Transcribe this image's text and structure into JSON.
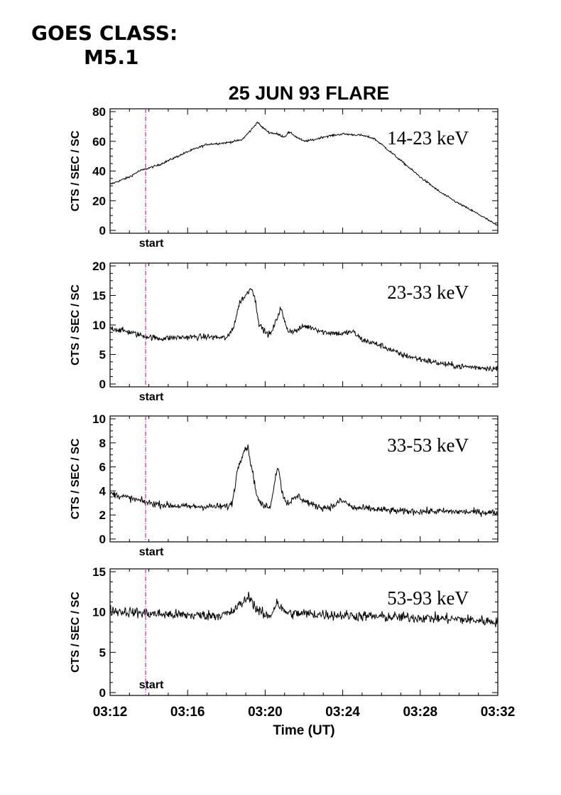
{
  "goes": {
    "line1": "GOES CLASS:",
    "line2": "M5.1"
  },
  "chart_data": {
    "type": "line",
    "title": "25 JUN 93 FLARE",
    "xlabel": "Time (UT)",
    "x_tick_labels": [
      "03:12",
      "03:16",
      "03:20",
      "03:24",
      "03:28",
      "03:32"
    ],
    "x_range_minutes": [
      0,
      20
    ],
    "x_origin": "03:12",
    "start_marker": {
      "label": "start",
      "time": "03:13:50",
      "color": "#cc22cc"
    },
    "grid": false,
    "panels": [
      {
        "band": "14-23 keV",
        "ylabel": "CTS / SEC / SC",
        "ylim": [
          0,
          80
        ],
        "yticks": [
          0,
          20,
          40,
          60,
          80
        ],
        "noise": 0.7,
        "series": [
          [
            0,
            31
          ],
          [
            1,
            36
          ],
          [
            1.5,
            40
          ],
          [
            2.5,
            44
          ],
          [
            3.5,
            50
          ],
          [
            4,
            53
          ],
          [
            5,
            58
          ],
          [
            6,
            59
          ],
          [
            6.8,
            61
          ],
          [
            7.3,
            68
          ],
          [
            7.6,
            73
          ],
          [
            7.8,
            70
          ],
          [
            8.2,
            66
          ],
          [
            8.6,
            65
          ],
          [
            9,
            63
          ],
          [
            9.2,
            66
          ],
          [
            9.4,
            65
          ],
          [
            9.6,
            63
          ],
          [
            10,
            60
          ],
          [
            10.5,
            61
          ],
          [
            11,
            63
          ],
          [
            12,
            65
          ],
          [
            13,
            64
          ],
          [
            13.6,
            62
          ],
          [
            14,
            58
          ],
          [
            15,
            47
          ],
          [
            16,
            36
          ],
          [
            17,
            26
          ],
          [
            18,
            18
          ],
          [
            19,
            11
          ],
          [
            19.5,
            7
          ],
          [
            20,
            3
          ]
        ]
      },
      {
        "band": "23-33 keV",
        "ylabel": "CTS / SEC / SC",
        "ylim": [
          0,
          20
        ],
        "yticks": [
          0,
          5,
          10,
          15,
          20
        ],
        "noise": 0.5,
        "series": [
          [
            0,
            9.5
          ],
          [
            1,
            8.8
          ],
          [
            1.5,
            8.3
          ],
          [
            2.5,
            7.7
          ],
          [
            3.5,
            7.9
          ],
          [
            5,
            8
          ],
          [
            6,
            7.8
          ],
          [
            6,
            7.8
          ],
          [
            6.1,
            8
          ],
          [
            6.4,
            10
          ],
          [
            6.7,
            14
          ],
          [
            7,
            15
          ],
          [
            7.3,
            16.5
          ],
          [
            7.5,
            14
          ],
          [
            7.7,
            10
          ],
          [
            8.1,
            8.5
          ],
          [
            8.3,
            8.5
          ],
          [
            8.6,
            11
          ],
          [
            8.8,
            13
          ],
          [
            9,
            10.5
          ],
          [
            9.2,
            9
          ],
          [
            9.6,
            9
          ],
          [
            10,
            9.8
          ],
          [
            10.5,
            9.5
          ],
          [
            11,
            8.8
          ],
          [
            12,
            8.5
          ],
          [
            12.5,
            8.9
          ],
          [
            13,
            7.5
          ],
          [
            13.5,
            7
          ],
          [
            14,
            6.5
          ],
          [
            15,
            5
          ],
          [
            16,
            4.2
          ],
          [
            17,
            3.5
          ],
          [
            18,
            3
          ],
          [
            19,
            2.8
          ],
          [
            20,
            2.6
          ]
        ]
      },
      {
        "band": "33-53 keV",
        "ylabel": "CTS / SEC / SC",
        "ylim": [
          0,
          10
        ],
        "yticks": [
          0,
          2,
          4,
          6,
          8,
          10
        ],
        "noise": 0.28,
        "series": [
          [
            0,
            3.8
          ],
          [
            1,
            3.4
          ],
          [
            2,
            3
          ],
          [
            3,
            2.8
          ],
          [
            4,
            2.7
          ],
          [
            5,
            2.7
          ],
          [
            6.1,
            2.7
          ],
          [
            6.3,
            3
          ],
          [
            6.6,
            6
          ],
          [
            6.9,
            7.4
          ],
          [
            7.1,
            7.7
          ],
          [
            7.3,
            6
          ],
          [
            7.6,
            3.4
          ],
          [
            7.9,
            2.7
          ],
          [
            8.3,
            2.8
          ],
          [
            8.55,
            5.5
          ],
          [
            8.7,
            6
          ],
          [
            8.85,
            4
          ],
          [
            9.1,
            3
          ],
          [
            9.4,
            3.2
          ],
          [
            9.7,
            3.6
          ],
          [
            10,
            3.2
          ],
          [
            10.5,
            2.8
          ],
          [
            11,
            2.6
          ],
          [
            11.5,
            2.7
          ],
          [
            11.9,
            3.2
          ],
          [
            12.2,
            3
          ],
          [
            12.5,
            2.6
          ],
          [
            13.5,
            2.5
          ],
          [
            15,
            2.3
          ],
          [
            17,
            2.3
          ],
          [
            20,
            2.2
          ]
        ]
      },
      {
        "band": "53-93 keV",
        "ylabel": "CTS / SEC / SC",
        "ylim": [
          0,
          15
        ],
        "yticks": [
          0,
          5,
          10,
          15
        ],
        "noise": 0.65,
        "series": [
          [
            0,
            10.2
          ],
          [
            2,
            9.8
          ],
          [
            4,
            9.6
          ],
          [
            5.5,
            9.6
          ],
          [
            6.2,
            9.8
          ],
          [
            6.6,
            10.7
          ],
          [
            7,
            11.5
          ],
          [
            7.2,
            12
          ],
          [
            7.5,
            10.5
          ],
          [
            8,
            9.5
          ],
          [
            8.3,
            9.6
          ],
          [
            8.6,
            11.3
          ],
          [
            8.9,
            10.2
          ],
          [
            9.3,
            9.8
          ],
          [
            10,
            9.8
          ],
          [
            12,
            9.6
          ],
          [
            14,
            9.4
          ],
          [
            16,
            9.3
          ],
          [
            18,
            9.1
          ],
          [
            20,
            8.8
          ]
        ]
      }
    ]
  }
}
